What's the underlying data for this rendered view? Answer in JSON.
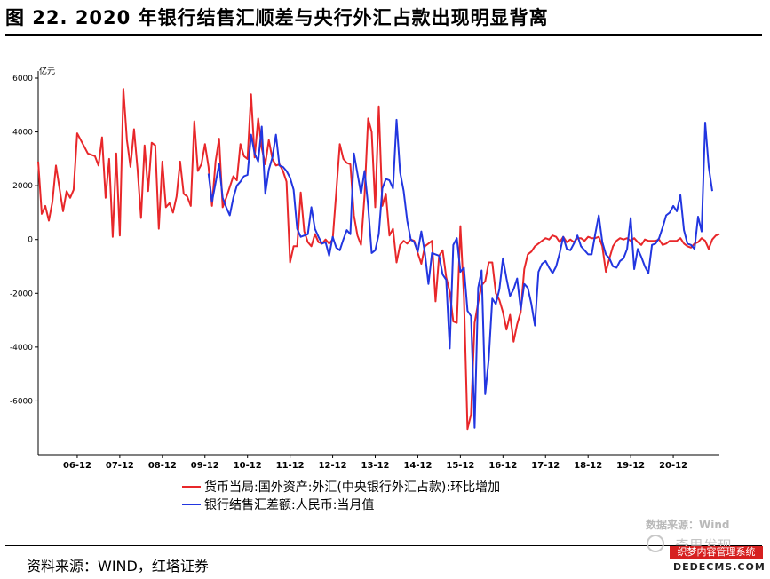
{
  "header": {
    "title": "图 22. 2020 年银行结售汇顺差与央行外汇占款出现明显背离"
  },
  "footer": {
    "source": "资料来源：WIND，红塔证券"
  },
  "watermarks": {
    "data_source": "数据来源：Wind",
    "account": "奇思发现",
    "banner": "织梦内容管理系统",
    "site": "DEDECMS.COM"
  },
  "colors": {
    "series_red": "#e8272a",
    "series_blue": "#2236e0",
    "axis": "#000000"
  },
  "chart_data": {
    "type": "line",
    "title": "",
    "xlabel": "",
    "ylabel": "亿元",
    "ylim": [
      -8000,
      6000
    ],
    "yticks": [
      6000,
      4000,
      2000,
      0,
      -2000,
      -4000,
      -6000
    ],
    "grid": false,
    "legend_position": "bottom",
    "x_tick_labels": [
      "06-12",
      "07-12",
      "08-12",
      "09-12",
      "10-12",
      "11-12",
      "12-12",
      "13-12",
      "14-12",
      "15-12",
      "16-12",
      "17-12",
      "18-12",
      "19-12",
      "20-12"
    ],
    "x_start": "2006-01",
    "series": [
      {
        "name": "货币当局:国外资产:外汇(中央银行外汇占款):环比增加",
        "color": "#e8272a",
        "values": [
          2900,
          950,
          1250,
          700,
          1400,
          2750,
          1900,
          1050,
          1800,
          1550,
          1850,
          3950,
          3700,
          3450,
          3200,
          3150,
          3100,
          2750,
          3800,
          1550,
          3000,
          100,
          3200,
          150,
          5600,
          3700,
          2700,
          4100,
          2600,
          800,
          3500,
          1800,
          3600,
          3500,
          400,
          2900,
          1200,
          1350,
          1000,
          1600,
          2900,
          1700,
          1600,
          1250,
          4400,
          2550,
          2800,
          3550,
          2700,
          1250,
          2900,
          3750,
          1200,
          1550,
          1950,
          2350,
          2200,
          3550,
          3100,
          3000,
          5400,
          3050,
          4500,
          3400,
          2800,
          3700,
          3000,
          2750,
          2800,
          2550,
          2150,
          -850,
          -250,
          -250,
          1750,
          300,
          -100,
          -250,
          200,
          -100,
          -150,
          0,
          -150,
          0,
          1750,
          3550,
          3000,
          2850,
          2800,
          900,
          150,
          -200,
          1650,
          4500,
          4000,
          1200,
          4950,
          1250,
          1700,
          150,
          400,
          -850,
          -200,
          -50,
          -150,
          0,
          -50,
          -500,
          -900,
          -250,
          -150,
          -50,
          -2300,
          -600,
          -400,
          -1400,
          -1950,
          -3050,
          -3100,
          500,
          -2150,
          -7050,
          -6500,
          -3100,
          -2350,
          -1700,
          -1550,
          -850,
          -850,
          -2000,
          -2250,
          -2700,
          -3350,
          -2800,
          -3800,
          -3150,
          -2700,
          -1100,
          -550,
          -450,
          -250,
          -150,
          -50,
          50,
          0,
          150,
          100,
          -100,
          100,
          -100,
          0,
          -100,
          50,
          50,
          -50,
          100,
          50,
          50,
          100,
          -250,
          -1200,
          -700,
          -250,
          -50,
          50,
          0,
          50,
          -50,
          50,
          -100,
          -200,
          0,
          -50,
          -50,
          -50,
          0,
          -200,
          -150,
          -50,
          -50,
          -50,
          50,
          -150,
          -250,
          -300,
          -150,
          -100,
          50,
          -50,
          -350,
          0,
          150,
          200
        ],
        "x_start": "2006-01"
      },
      {
        "name": "银行结售汇差额:人民币:当月值",
        "color": "#2236e0",
        "x_start": "2010-01",
        "values": [
          2450,
          1400,
          2100,
          2800,
          1550,
          1200,
          900,
          1550,
          2000,
          2150,
          2350,
          2400,
          3900,
          3200,
          2900,
          4200,
          1700,
          2600,
          3050,
          3900,
          2750,
          2700,
          2550,
          2300,
          1850,
          400,
          100,
          150,
          200,
          1200,
          400,
          100,
          -150,
          -100,
          -600,
          100,
          -300,
          -400,
          0,
          350,
          200,
          3200,
          2450,
          1700,
          2550,
          1250,
          -500,
          -400,
          200,
          1900,
          2250,
          2200,
          1900,
          4450,
          2500,
          1800,
          700,
          0,
          -100,
          -450,
          300,
          -500,
          -1650,
          -500,
          -550,
          -600,
          -1300,
          -1500,
          -4050,
          -200,
          50,
          -1200,
          -1050,
          -2650,
          -2850,
          -7000,
          -1800,
          -1150,
          -5750,
          -4450,
          -2200,
          -2400,
          -1850,
          -700,
          -1450,
          -2100,
          -1850,
          -1450,
          -2600,
          -1650,
          -1800,
          -2400,
          -3200,
          -1200,
          -900,
          -800,
          -1050,
          -1250,
          -1000,
          -500,
          100,
          -350,
          -400,
          -150,
          150,
          -250,
          -400,
          -550,
          -550,
          200,
          900,
          -100,
          -550,
          -700,
          -1000,
          -1050,
          -800,
          -700,
          -350,
          800,
          -1100,
          -350,
          -650,
          -1000,
          -1250,
          -200,
          -150,
          50,
          450,
          900,
          1000,
          1250,
          1050,
          1650,
          350,
          -150,
          -200,
          -350,
          850,
          300,
          4350,
          2700,
          1800
        ]
      }
    ]
  }
}
